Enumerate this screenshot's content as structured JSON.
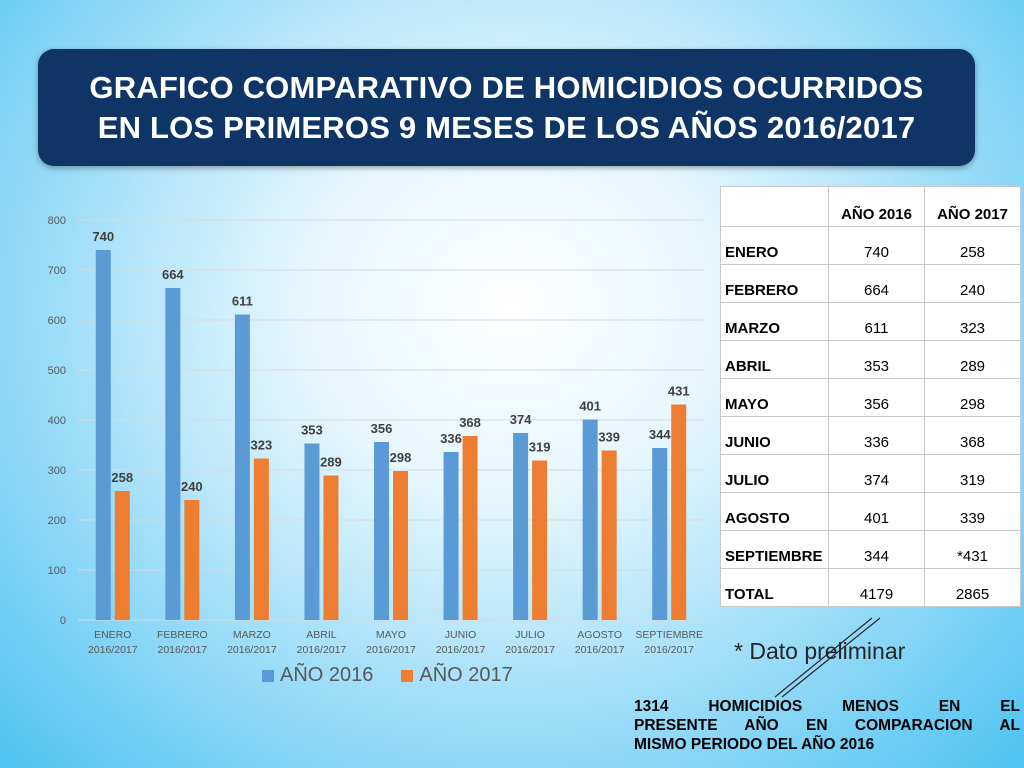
{
  "title": {
    "line1": "GRAFICO COMPARATIVO DE HOMICIDIOS OCURRIDOS",
    "line2": "EN LOS PRIMEROS 9 MESES DE  LOS AÑOS 2016/2017"
  },
  "colors": {
    "s2016": "#5b9bd5",
    "s2017": "#ed7d31",
    "grid": "#d9d9d9",
    "axis_text": "#595959",
    "label_text": "#404040"
  },
  "chart_data": {
    "type": "bar",
    "categories": [
      [
        "ENERO",
        "2016/2017"
      ],
      [
        "FEBRERO",
        "2016/2017"
      ],
      [
        "MARZO",
        "2016/2017"
      ],
      [
        "ABRIL",
        "2016/2017"
      ],
      [
        "MAYO",
        "2016/2017"
      ],
      [
        "JUNIO",
        "2016/2017"
      ],
      [
        "JULIO",
        "2016/2017"
      ],
      [
        "AGOSTO",
        "2016/2017"
      ],
      [
        "SEPTIEMBRE",
        "2016/2017"
      ]
    ],
    "series": [
      {
        "name": "AÑO 2016",
        "values": [
          740,
          664,
          611,
          353,
          356,
          336,
          374,
          401,
          344
        ]
      },
      {
        "name": "AÑO 2017",
        "values": [
          258,
          240,
          323,
          289,
          298,
          368,
          319,
          339,
          431
        ]
      }
    ],
    "yticks": [
      0,
      100,
      200,
      300,
      400,
      500,
      600,
      700,
      800
    ],
    "ylim": [
      0,
      800
    ],
    "grid": true,
    "legend": "bottom"
  },
  "table": {
    "headers": [
      "",
      "AÑO 2016",
      "AÑO 2017"
    ],
    "rows": [
      [
        "ENERO",
        "740",
        "258"
      ],
      [
        "FEBRERO",
        "664",
        "240"
      ],
      [
        "MARZO",
        "611",
        "323"
      ],
      [
        "ABRIL",
        "353",
        "289"
      ],
      [
        "MAYO",
        "356",
        "298"
      ],
      [
        "JUNIO",
        "336",
        "368"
      ],
      [
        "JULIO",
        "374",
        "319"
      ],
      [
        "AGOSTO",
        "401",
        "339"
      ],
      [
        "SEPTIEMBRE",
        "344",
        "*431"
      ],
      [
        "TOTAL",
        "4179",
        "2865"
      ]
    ]
  },
  "note": "* Dato preliminar",
  "summary": {
    "line1": "1314      HOMICIDIOS MENOS EN EL",
    "line2": "PRESENTE AÑO EN COMPARACION AL",
    "line3": "MISMO PERIODO DEL AÑO 2016"
  }
}
